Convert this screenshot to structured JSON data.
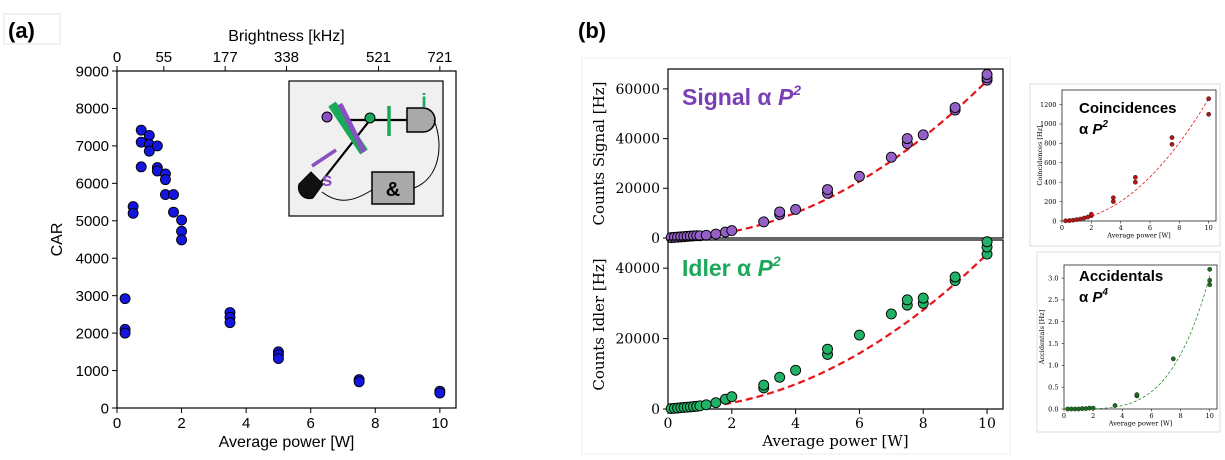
{
  "panel_labels": {
    "a": "(a)",
    "b": "(b)"
  },
  "chart_data": [
    {
      "id": "car",
      "type": "scatter",
      "xlabel": "Average power [W]",
      "ylabel": "CAR",
      "xlim": [
        0,
        10.5
      ],
      "ylim": [
        0,
        9000
      ],
      "xticks": [
        0,
        2,
        4,
        6,
        8,
        10
      ],
      "yticks": [
        0,
        1000,
        2000,
        3000,
        4000,
        5000,
        6000,
        7000,
        8000,
        9000
      ],
      "top_axis": {
        "label": "Brightness [kHz]",
        "ticks": [
          {
            "x": 0,
            "label": "0"
          },
          {
            "x": 1.45,
            "label": "55"
          },
          {
            "x": 3.35,
            "label": "177"
          },
          {
            "x": 5.25,
            "label": "338"
          },
          {
            "x": 8.1,
            "label": "521"
          },
          {
            "x": 10,
            "label": "721"
          }
        ]
      },
      "marker_color": "#1515e0",
      "grid": false,
      "points": [
        [
          0.25,
          2920
        ],
        [
          0.25,
          2100
        ],
        [
          0.25,
          2000
        ],
        [
          0.5,
          5380
        ],
        [
          0.5,
          5200
        ],
        [
          0.75,
          7420
        ],
        [
          0.75,
          7100
        ],
        [
          0.75,
          6440
        ],
        [
          1.0,
          7280
        ],
        [
          1.0,
          7040
        ],
        [
          1.0,
          6860
        ],
        [
          1.25,
          7000
        ],
        [
          1.25,
          6420
        ],
        [
          1.25,
          6330
        ],
        [
          1.5,
          6250
        ],
        [
          1.5,
          6100
        ],
        [
          1.5,
          5700
        ],
        [
          1.75,
          5700
        ],
        [
          1.75,
          5230
        ],
        [
          2.0,
          5020
        ],
        [
          2.0,
          4720
        ],
        [
          2.0,
          4490
        ],
        [
          3.5,
          2550
        ],
        [
          3.5,
          2420
        ],
        [
          3.5,
          2280
        ],
        [
          5.0,
          1500
        ],
        [
          5.0,
          1420
        ],
        [
          5.0,
          1320
        ],
        [
          7.5,
          760
        ],
        [
          7.5,
          700
        ],
        [
          10.0,
          450
        ],
        [
          10.0,
          400
        ]
      ],
      "inset": {
        "labels": {
          "idler": "i",
          "signal": "s",
          "coincidence": "&"
        }
      }
    },
    {
      "id": "signal",
      "type": "scatter",
      "ylabel": "Counts Signal [Hz]",
      "annotation": {
        "text": "Signal α",
        "var": "P",
        "exp": "2",
        "color": "#7b3fb5"
      },
      "xlim": [
        0,
        10.5
      ],
      "ylim": [
        0,
        68000
      ],
      "yticks": [
        0,
        20000,
        40000,
        60000
      ],
      "marker_color": "#9460c8",
      "fit": {
        "coefficient": 633,
        "power": 2,
        "color": "#e8141c",
        "style": "dashed"
      },
      "points": [
        [
          0.1,
          150
        ],
        [
          0.2,
          250
        ],
        [
          0.3,
          350
        ],
        [
          0.4,
          450
        ],
        [
          0.5,
          550
        ],
        [
          0.6,
          650
        ],
        [
          0.7,
          750
        ],
        [
          0.8,
          850
        ],
        [
          0.9,
          950
        ],
        [
          1.0,
          900
        ],
        [
          1.2,
          1100
        ],
        [
          1.5,
          1600
        ],
        [
          1.8,
          2400
        ],
        [
          2.0,
          3000
        ],
        [
          3.0,
          6500
        ],
        [
          3.5,
          9500
        ],
        [
          3.5,
          10500
        ],
        [
          4.0,
          11500
        ],
        [
          5.0,
          18000
        ],
        [
          5.0,
          19500
        ],
        [
          6.0,
          24800
        ],
        [
          7.0,
          32500
        ],
        [
          7.5,
          38000
        ],
        [
          7.5,
          40000
        ],
        [
          8.0,
          41500
        ],
        [
          9.0,
          51500
        ],
        [
          9.0,
          52500
        ],
        [
          10.0,
          63500
        ],
        [
          10.0,
          64500
        ],
        [
          10.0,
          65800
        ]
      ]
    },
    {
      "id": "idler",
      "type": "scatter",
      "xlabel": "Average power [W]",
      "ylabel": "Counts Idler [Hz]",
      "annotation": {
        "text": "Idler α",
        "var": "P",
        "exp": "2",
        "color": "#1aa85a"
      },
      "xlim": [
        0,
        10.5
      ],
      "ylim": [
        0,
        48000
      ],
      "xticks": [
        0,
        2,
        4,
        6,
        8,
        10
      ],
      "yticks": [
        0,
        20000,
        40000
      ],
      "marker_color": "#22b266",
      "fit": {
        "coefficient": 440,
        "power": 2,
        "color": "#e8141c",
        "style": "dashed"
      },
      "points": [
        [
          0.1,
          120
        ],
        [
          0.2,
          200
        ],
        [
          0.3,
          280
        ],
        [
          0.4,
          380
        ],
        [
          0.5,
          450
        ],
        [
          0.6,
          520
        ],
        [
          0.7,
          600
        ],
        [
          0.8,
          680
        ],
        [
          0.9,
          760
        ],
        [
          1.0,
          900
        ],
        [
          1.2,
          1200
        ],
        [
          1.5,
          1800
        ],
        [
          1.8,
          2800
        ],
        [
          2.0,
          3500
        ],
        [
          3.0,
          6000
        ],
        [
          3.0,
          6800
        ],
        [
          3.5,
          9000
        ],
        [
          4.0,
          11000
        ],
        [
          5.0,
          15500
        ],
        [
          5.0,
          17000
        ],
        [
          6.0,
          21000
        ],
        [
          7.0,
          27000
        ],
        [
          7.5,
          29500
        ],
        [
          7.5,
          31000
        ],
        [
          8.0,
          30000
        ],
        [
          8.0,
          31500
        ],
        [
          9.0,
          36500
        ],
        [
          9.0,
          37500
        ],
        [
          10.0,
          44000
        ],
        [
          10.0,
          46000
        ],
        [
          10.0,
          47500
        ]
      ]
    },
    {
      "id": "coincidences",
      "type": "scatter",
      "xlabel": "Average power [W]",
      "ylabel": "Coincidences [Hz]",
      "annotation": {
        "line1": "Coincidences",
        "prefix": "α",
        "var": "P",
        "exp": "2"
      },
      "xlim": [
        0,
        10.5
      ],
      "ylim": [
        0,
        1350
      ],
      "xticks": [
        0,
        2,
        4,
        6,
        8,
        10
      ],
      "yticks": [
        0,
        200,
        400,
        600,
        800,
        1000,
        1200
      ],
      "marker_color": "#b01818",
      "fit": {
        "coefficient": 12.6,
        "power": 2,
        "color": "#e8141c",
        "style": "dashed"
      },
      "points": [
        [
          0.25,
          2
        ],
        [
          0.5,
          4
        ],
        [
          0.75,
          8
        ],
        [
          1.0,
          14
        ],
        [
          1.25,
          20
        ],
        [
          1.5,
          30
        ],
        [
          1.75,
          40
        ],
        [
          2.0,
          55
        ],
        [
          2.0,
          70
        ],
        [
          3.5,
          200
        ],
        [
          3.5,
          240
        ],
        [
          5.0,
          400
        ],
        [
          5.0,
          450
        ],
        [
          7.5,
          790
        ],
        [
          7.5,
          860
        ],
        [
          10.0,
          1100
        ],
        [
          10.0,
          1260
        ]
      ]
    },
    {
      "id": "accidentals",
      "type": "scatter",
      "xlabel": "Average power [W]",
      "ylabel": "Accidentals [Hz]",
      "annotation": {
        "line1": "Accidentals",
        "prefix": "α",
        "var": "P",
        "exp": "4"
      },
      "xlim": [
        0,
        10.5
      ],
      "ylim": [
        0,
        3.3
      ],
      "xticks": [
        0,
        2,
        4,
        6,
        8,
        10
      ],
      "yticks": [
        0.0,
        0.5,
        1.0,
        1.5,
        2.0,
        2.5,
        3.0
      ],
      "yticklabels": [
        "0.0",
        "0.5",
        "1.0",
        "1.5",
        "2.0",
        "2.5",
        "3.0"
      ],
      "marker_color": "#1f6b22",
      "fit": {
        "coefficient": 0.000305,
        "power": 4,
        "color": "#2e8b32",
        "style": "dashed"
      },
      "points": [
        [
          0.25,
          0
        ],
        [
          0.5,
          0
        ],
        [
          0.75,
          0
        ],
        [
          1.0,
          0
        ],
        [
          1.25,
          0.01
        ],
        [
          1.5,
          0.01
        ],
        [
          1.75,
          0.02
        ],
        [
          2.0,
          0.02
        ],
        [
          3.5,
          0.08
        ],
        [
          5.0,
          0.3
        ],
        [
          5.0,
          0.33
        ],
        [
          7.5,
          1.15
        ],
        [
          10.0,
          2.85
        ],
        [
          10.0,
          2.95
        ],
        [
          10.0,
          3.2
        ]
      ]
    }
  ]
}
